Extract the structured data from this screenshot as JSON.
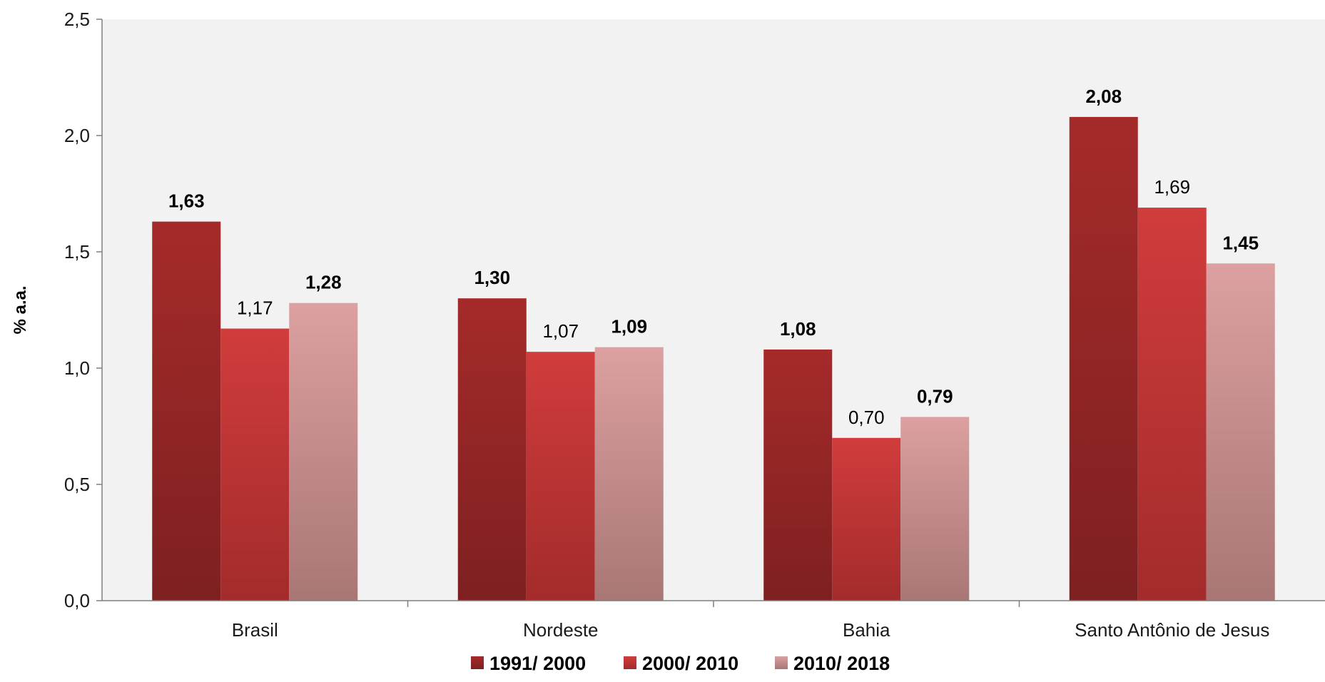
{
  "chart_data": {
    "type": "bar",
    "title": "",
    "xlabel": "",
    "ylabel": "% a.a.",
    "ylim": [
      0,
      2.5
    ],
    "yticks": [
      "0,0",
      "0,5",
      "1,0",
      "1,5",
      "2,0",
      "2,5"
    ],
    "ytick_values": [
      0,
      0.5,
      1.0,
      1.5,
      2.0,
      2.5
    ],
    "categories": [
      "Brasil",
      "Nordeste",
      "Bahia",
      "Santo Antônio de Jesus"
    ],
    "series": [
      {
        "name": "1991/ 2000",
        "values": [
          1.63,
          1.3,
          1.08,
          2.08
        ],
        "labels": [
          "1,63",
          "1,30",
          "1,08",
          "2,08"
        ],
        "label_bold": true,
        "color": "#a52a2a",
        "color_bottom": "#7e2020"
      },
      {
        "name": "2000/ 2010",
        "values": [
          1.17,
          1.07,
          0.7,
          1.69
        ],
        "labels": [
          "1,17",
          "1,07",
          "0,70",
          "1,69"
        ],
        "label_bold": false,
        "color": "#d13c3c",
        "color_bottom": "#a32b2b"
      },
      {
        "name": "2010/ 2018",
        "values": [
          1.28,
          1.09,
          0.79,
          1.45
        ],
        "labels": [
          "1,28",
          "1,09",
          "0,79",
          "1,45"
        ],
        "label_bold": true,
        "color": "#dca0a0",
        "color_bottom": "#a97676"
      }
    ],
    "plot_background": "#f2f2f2",
    "grid": false,
    "legend_position": "bottom"
  }
}
